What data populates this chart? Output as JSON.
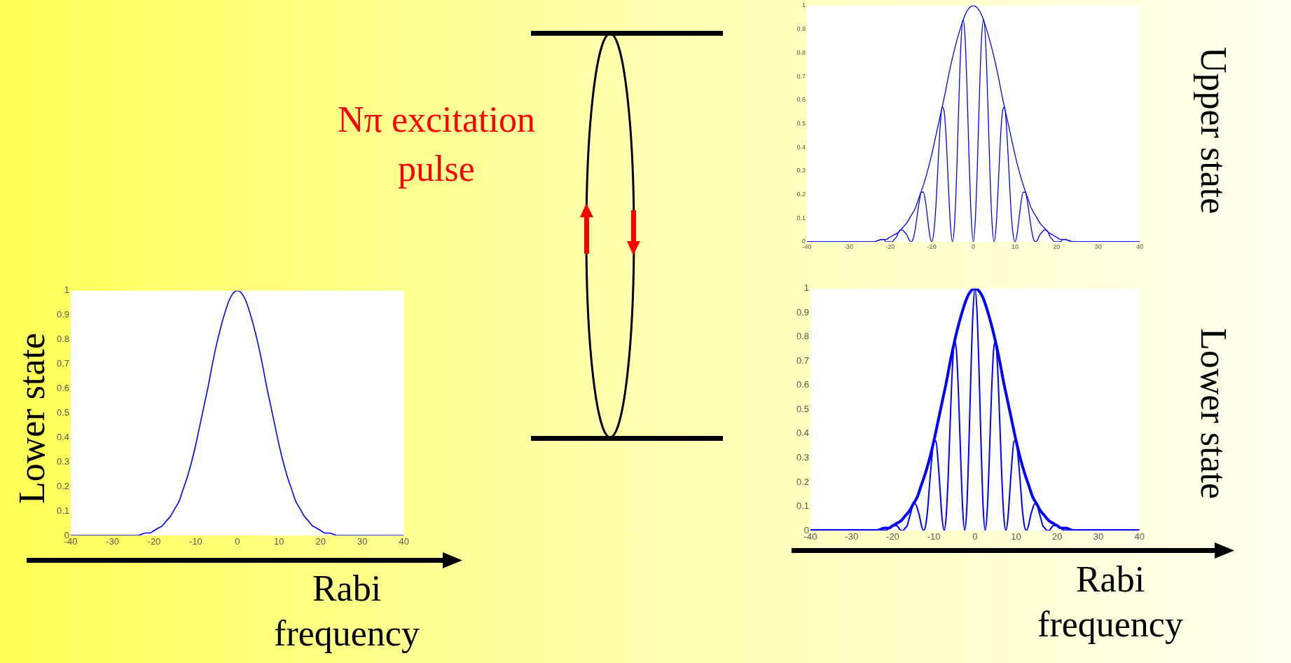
{
  "chart_data": [
    {
      "type": "line",
      "xlabel": "Rabi frequency",
      "ylabel": "Lower state",
      "legend": false,
      "grid": false,
      "xlim": [
        -40,
        40
      ],
      "xticks": [
        -40,
        -30,
        -20,
        -10,
        0,
        10,
        20,
        30,
        40
      ],
      "ylim": [
        0,
        1
      ],
      "yticks": [
        0,
        0.1,
        0.2,
        0.3,
        0.4,
        0.5,
        0.6,
        0.7,
        0.8,
        0.9,
        1
      ],
      "series": [
        {
          "color": "#0000ff",
          "x": [
            -40,
            -24,
            -22,
            -21,
            -20,
            -19,
            -18,
            -17,
            -16,
            -15,
            -14,
            -13,
            -12,
            -11,
            -10,
            -9,
            -8,
            -7,
            -6,
            -5,
            -4,
            -3,
            -2,
            -1,
            0,
            1,
            2,
            3,
            4,
            5,
            6,
            7,
            8,
            9,
            10,
            11,
            12,
            13,
            14,
            15,
            16,
            17,
            18,
            19,
            20,
            21,
            22,
            24,
            40
          ],
          "values": [
            0,
            0,
            0.01,
            0.01,
            0.02,
            0.03,
            0.04,
            0.06,
            0.08,
            0.11,
            0.14,
            0.19,
            0.24,
            0.3,
            0.37,
            0.45,
            0.53,
            0.61,
            0.7,
            0.78,
            0.85,
            0.91,
            0.96,
            0.99,
            1,
            0.99,
            0.96,
            0.91,
            0.85,
            0.78,
            0.7,
            0.61,
            0.53,
            0.45,
            0.37,
            0.3,
            0.24,
            0.19,
            0.14,
            0.11,
            0.08,
            0.06,
            0.04,
            0.03,
            0.02,
            0.01,
            0.01,
            0,
            0
          ]
        }
      ]
    },
    {
      "type": "line",
      "ylabel": "Upper state",
      "legend": false,
      "grid": false,
      "xlim": [
        -40,
        40
      ],
      "xticks": [
        -40,
        -30,
        -20,
        -10,
        0,
        10,
        20,
        30,
        40
      ],
      "ylim": [
        0,
        1
      ],
      "yticks": [
        0,
        0.1,
        0.2,
        0.3,
        0.4,
        0.5,
        0.6,
        0.7,
        0.8,
        0.9,
        1
      ],
      "series": [
        {
          "color": "#0000ff",
          "x": [
            -40,
            -24,
            -22,
            -21,
            -20,
            -19,
            -18,
            -17,
            -16,
            -15,
            -14,
            -13,
            -12,
            -11,
            -10,
            -9,
            -8,
            -7,
            -6,
            -5,
            -4,
            -3,
            -2,
            -1,
            0,
            1,
            2,
            3,
            4,
            5,
            6,
            7,
            8,
            9,
            10,
            11,
            12,
            13,
            14,
            15,
            16,
            17,
            18,
            19,
            20,
            21,
            22,
            24,
            40
          ],
          "values": [
            0,
            0,
            0.01,
            0.01,
            0.02,
            0.03,
            0.04,
            0.06,
            0.08,
            0.11,
            0.14,
            0.19,
            0.24,
            0.3,
            0.37,
            0.45,
            0.53,
            0.61,
            0.7,
            0.78,
            0.85,
            0.91,
            0.96,
            0.99,
            1,
            0.99,
            0.96,
            0.91,
            0.85,
            0.78,
            0.7,
            0.61,
            0.53,
            0.45,
            0.37,
            0.3,
            0.24,
            0.19,
            0.14,
            0.11,
            0.08,
            0.06,
            0.04,
            0.03,
            0.02,
            0.01,
            0.01,
            0,
            0
          ]
        },
        {
          "color": "#0000ff",
          "x": [
            -40,
            -24,
            -22,
            -21.5,
            -21,
            -20.5,
            -20,
            -19.5,
            -19,
            -18.5,
            -18,
            -17.5,
            -17,
            -16.5,
            -16,
            -15.5,
            -15,
            -14.5,
            -14,
            -13.5,
            -13,
            -12.5,
            -12,
            -11.5,
            -11,
            -10.5,
            -10,
            -9.5,
            -9,
            -8.5,
            -8,
            -7.5,
            -7,
            -6.5,
            -6,
            -5.5,
            -5,
            -4.5,
            -4,
            -3.5,
            -3,
            -2.5,
            -2,
            -1.5,
            -1,
            -0.5,
            0,
            0.5,
            1,
            1.5,
            2,
            2.5,
            3,
            3.5,
            4,
            4.5,
            5,
            5.5,
            6,
            6.5,
            7,
            7.5,
            8,
            8.5,
            9,
            9.5,
            10,
            10.5,
            11,
            11.5,
            12,
            12.5,
            13,
            13.5,
            14,
            14.5,
            15,
            15.5,
            16,
            16.5,
            17,
            17.5,
            18,
            18.5,
            19,
            19.5,
            20,
            20.5,
            21,
            21.5,
            22,
            24,
            40
          ],
          "values": [
            0,
            0,
            0.01,
            0.01,
            0,
            0,
            0,
            0,
            0.01,
            0.02,
            0.04,
            0.05,
            0.05,
            0.04,
            0.03,
            0.01,
            0,
            0.01,
            0.05,
            0.11,
            0.17,
            0.21,
            0.21,
            0.17,
            0.1,
            0.03,
            0,
            0.04,
            0.15,
            0.32,
            0.48,
            0.57,
            0.55,
            0.43,
            0.24,
            0.07,
            0,
            0.08,
            0.29,
            0.58,
            0.83,
            0.94,
            0.87,
            0.64,
            0.34,
            0.1,
            0,
            0.1,
            0.34,
            0.64,
            0.87,
            0.94,
            0.83,
            0.58,
            0.29,
            0.08,
            0,
            0.07,
            0.24,
            0.43,
            0.55,
            0.57,
            0.48,
            0.32,
            0.15,
            0.04,
            0,
            0.03,
            0.1,
            0.17,
            0.21,
            0.21,
            0.17,
            0.11,
            0.05,
            0.01,
            0,
            0.01,
            0.03,
            0.04,
            0.05,
            0.05,
            0.04,
            0.02,
            0.01,
            0,
            0,
            0,
            0,
            0.01,
            0.01,
            0,
            0
          ]
        }
      ]
    },
    {
      "type": "line",
      "xlabel": "Rabi frequency",
      "ylabel": "Lower state",
      "legend": false,
      "grid": false,
      "xlim": [
        -40,
        40
      ],
      "xticks": [
        -40,
        -30,
        -20,
        -10,
        0,
        10,
        20,
        30,
        40
      ],
      "ylim": [
        0,
        1
      ],
      "yticks": [
        0,
        0.1,
        0.2,
        0.3,
        0.4,
        0.5,
        0.6,
        0.7,
        0.8,
        0.9,
        1
      ],
      "series": [
        {
          "color": "#0000ff",
          "x": [
            -40,
            -24,
            -22,
            -21,
            -20,
            -19,
            -18,
            -17,
            -16,
            -15,
            -14,
            -13,
            -12,
            -11,
            -10,
            -9,
            -8,
            -7,
            -6,
            -5,
            -4,
            -3,
            -2,
            -1,
            0,
            1,
            2,
            3,
            4,
            5,
            6,
            7,
            8,
            9,
            10,
            11,
            12,
            13,
            14,
            15,
            16,
            17,
            18,
            19,
            20,
            21,
            22,
            24,
            40
          ],
          "values": [
            0,
            0,
            0.01,
            0.01,
            0.02,
            0.03,
            0.04,
            0.06,
            0.08,
            0.11,
            0.14,
            0.19,
            0.24,
            0.3,
            0.37,
            0.45,
            0.53,
            0.61,
            0.7,
            0.78,
            0.85,
            0.91,
            0.96,
            0.99,
            1,
            0.99,
            0.96,
            0.91,
            0.85,
            0.78,
            0.7,
            0.61,
            0.53,
            0.45,
            0.37,
            0.3,
            0.24,
            0.19,
            0.14,
            0.11,
            0.08,
            0.06,
            0.04,
            0.03,
            0.02,
            0.01,
            0.01,
            0,
            0
          ]
        },
        {
          "color": "#0000ff",
          "x": [
            -40,
            -24,
            -22,
            -21.5,
            -21,
            -20.5,
            -20,
            -19.5,
            -19,
            -18.5,
            -18,
            -17.5,
            -17,
            -16.5,
            -16,
            -15.5,
            -15,
            -14.5,
            -14,
            -13.5,
            -13,
            -12.5,
            -12,
            -11.5,
            -11,
            -10.5,
            -10,
            -9.5,
            -9,
            -8.5,
            -8,
            -7.5,
            -7,
            -6.5,
            -6,
            -5.5,
            -5,
            -4.5,
            -4,
            -3.5,
            -3,
            -2.5,
            -2,
            -1.5,
            -1,
            -0.5,
            0,
            0.5,
            1,
            1.5,
            2,
            2.5,
            3,
            3.5,
            4,
            4.5,
            5,
            5.5,
            6,
            6.5,
            7,
            7.5,
            8,
            8.5,
            9,
            9.5,
            10,
            10.5,
            11,
            11.5,
            12,
            12.5,
            13,
            13.5,
            14,
            14.5,
            15,
            15.5,
            16,
            16.5,
            17,
            17.5,
            18,
            18.5,
            19,
            19.5,
            20,
            20.5,
            21,
            21.5,
            22,
            24,
            40
          ],
          "values": [
            0,
            0,
            0,
            0,
            0.01,
            0.01,
            0.02,
            0.02,
            0.02,
            0.01,
            0,
            0,
            0.01,
            0.02,
            0.05,
            0.08,
            0.11,
            0.11,
            0.09,
            0.06,
            0.02,
            0,
            0.02,
            0.09,
            0.2,
            0.3,
            0.37,
            0.37,
            0.29,
            0.17,
            0.05,
            0,
            0.06,
            0.23,
            0.46,
            0.67,
            0.78,
            0.74,
            0.56,
            0.31,
            0.09,
            0,
            0.09,
            0.34,
            0.65,
            0.9,
            1,
            0.9,
            0.65,
            0.34,
            0.09,
            0,
            0.09,
            0.31,
            0.56,
            0.74,
            0.78,
            0.67,
            0.46,
            0.23,
            0.06,
            0,
            0.05,
            0.17,
            0.29,
            0.37,
            0.37,
            0.3,
            0.2,
            0.09,
            0.02,
            0,
            0.02,
            0.06,
            0.09,
            0.11,
            0.11,
            0.08,
            0.05,
            0.02,
            0.01,
            0,
            0,
            0.01,
            0.02,
            0.02,
            0.02,
            0.01,
            0.01,
            0,
            0,
            0,
            0
          ]
        }
      ]
    },
    {
      "type": "other",
      "annotations": [
        "Nπ excitation pulse"
      ]
    }
  ]
}
